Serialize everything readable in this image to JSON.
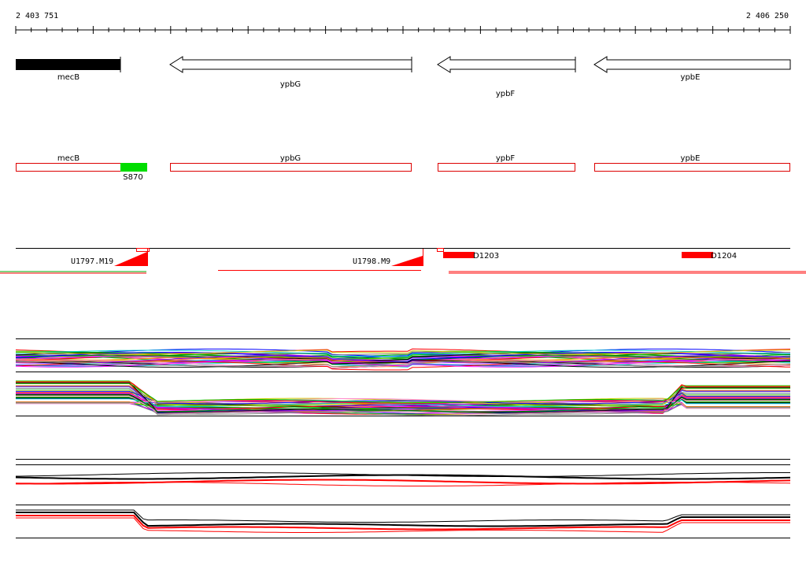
{
  "ruler": {
    "start_label": "2 403 751",
    "end_label": "2 406 250",
    "start": 2403751,
    "end": 2406250
  },
  "genes": [
    {
      "name": "mecB",
      "strand": "+",
      "style": "filled"
    },
    {
      "name": "ypbG",
      "strand": "-",
      "style": "open"
    },
    {
      "name": "ypbF",
      "strand": "-",
      "style": "open"
    },
    {
      "name": "ypbE",
      "strand": "-",
      "style": "open"
    }
  ],
  "annotations": [
    {
      "name": "mecB"
    },
    {
      "name": "ypbG"
    },
    {
      "name": "ypbF"
    },
    {
      "name": "ypbE"
    },
    {
      "name": "S870",
      "color": "#00dd00"
    }
  ],
  "features": [
    {
      "name": "U1797.M19",
      "type": "upstream"
    },
    {
      "name": "U1798.M9",
      "type": "upstream"
    },
    {
      "name": "D1203",
      "type": "downstream"
    },
    {
      "name": "D1204",
      "type": "downstream"
    }
  ],
  "colors": {
    "gene_fill": "#000000",
    "annotation_border": "#dd0000",
    "feature": "#ff0000",
    "highlight": "#00dd00",
    "trace_palette": [
      "#ff0000",
      "#00cc00",
      "#0000ff",
      "#ff00ff",
      "#00cccc",
      "#cccc00",
      "#ff8800",
      "#8800ff",
      "#000000",
      "#888888",
      "#ff88cc",
      "#008800"
    ]
  }
}
